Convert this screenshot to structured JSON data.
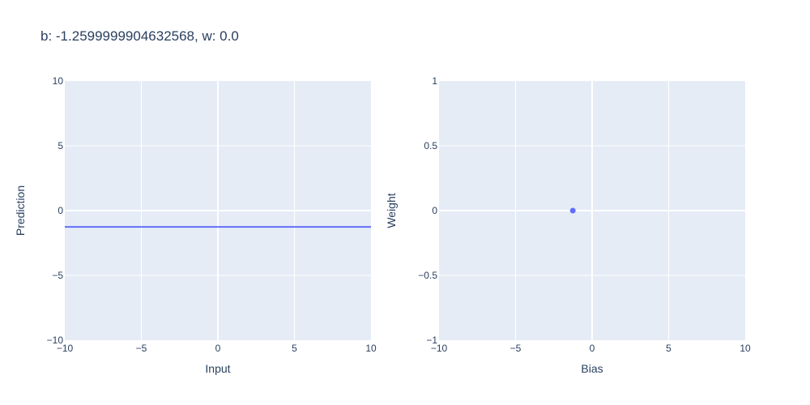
{
  "chart_data": [
    {
      "type": "line",
      "title": "b: -1.2599999904632568, w: 0.0",
      "xlabel": "Input",
      "ylabel": "Prediction",
      "xlim": [
        -10,
        10
      ],
      "ylim": [
        -10,
        10
      ],
      "x_ticks": [
        -10,
        -5,
        0,
        5,
        10
      ],
      "x_tick_labels": [
        "−10",
        "−5",
        "0",
        "5",
        "10"
      ],
      "y_ticks": [
        -10,
        -5,
        0,
        5,
        10
      ],
      "y_tick_labels": [
        "−10",
        "−5",
        "0",
        "5",
        "10"
      ],
      "grid": true,
      "series": [
        {
          "x": [
            -10,
            10
          ],
          "y": [
            -1.26,
            -1.26
          ],
          "color": "#636efa"
        }
      ]
    },
    {
      "type": "scatter",
      "xlabel": "Bias",
      "ylabel": "Weight",
      "xlim": [
        -10,
        10
      ],
      "ylim": [
        -1,
        1
      ],
      "x_ticks": [
        -10,
        -5,
        0,
        5,
        10
      ],
      "x_tick_labels": [
        "−10",
        "−5",
        "0",
        "5",
        "10"
      ],
      "y_ticks": [
        -1,
        -0.5,
        0,
        0.5,
        1
      ],
      "y_tick_labels": [
        "−1",
        "−0.5",
        "0",
        "0.5",
        "1"
      ],
      "grid": true,
      "series": [
        {
          "x": [
            -1.26
          ],
          "y": [
            0
          ],
          "color": "#636efa"
        }
      ]
    }
  ],
  "colors": {
    "plot_bg": "#e5ecf6",
    "grid": "#ffffff",
    "text": "#2a3f5f",
    "series": "#636efa"
  }
}
